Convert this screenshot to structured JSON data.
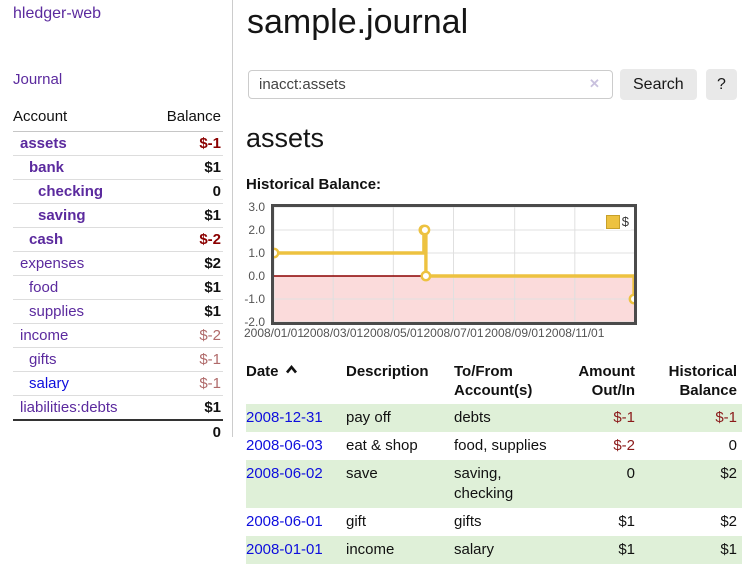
{
  "colors": {
    "link_purple": "#5b2a9e",
    "link_blue": "#0e0edd",
    "negative_strong": "#8b0000",
    "negative_muted": "#b06a6a",
    "register_negative": "#8b1a1a",
    "row_stripe_green": "#dff0d8",
    "series_gold": "#edc240",
    "chart_negative_fill": "#fbdbdb",
    "zero_line": "#8b0000"
  },
  "sidebar": {
    "app_title": "hledger-web",
    "journal_label": "Journal",
    "accounts": {
      "header_account": "Account",
      "header_balance": "Balance",
      "rows": [
        {
          "name": "assets",
          "indent": 0,
          "in_account": true,
          "balance": "$-1",
          "balance_tone": "negative",
          "link_tone": "purple"
        },
        {
          "name": "bank",
          "indent": 1,
          "in_account": true,
          "balance": "$1",
          "balance_tone": "positive",
          "link_tone": "purple"
        },
        {
          "name": "checking",
          "indent": 2,
          "in_account": true,
          "balance": "0",
          "balance_tone": "positive",
          "link_tone": "purple"
        },
        {
          "name": "saving",
          "indent": 2,
          "in_account": true,
          "balance": "$1",
          "balance_tone": "positive",
          "link_tone": "purple"
        },
        {
          "name": "cash",
          "indent": 1,
          "in_account": true,
          "balance": "$-2",
          "balance_tone": "negative",
          "link_tone": "purple"
        },
        {
          "name": "expenses",
          "indent": 0,
          "in_account": false,
          "balance": "$2",
          "balance_tone": "positive",
          "link_tone": "purple"
        },
        {
          "name": "food",
          "indent": 1,
          "in_account": false,
          "balance": "$1",
          "balance_tone": "positive",
          "link_tone": "purple"
        },
        {
          "name": "supplies",
          "indent": 1,
          "in_account": false,
          "balance": "$1",
          "balance_tone": "positive",
          "link_tone": "purple"
        },
        {
          "name": "income",
          "indent": 0,
          "in_account": false,
          "balance": "$-2",
          "balance_tone": "negative-muted",
          "link_tone": "purple"
        },
        {
          "name": "gifts",
          "indent": 1,
          "in_account": false,
          "balance": "$-1",
          "balance_tone": "negative-muted",
          "link_tone": "purple"
        },
        {
          "name": "salary",
          "indent": 1,
          "in_account": false,
          "balance": "$-1",
          "balance_tone": "negative-muted",
          "link_tone": "blue"
        },
        {
          "name": "liabilities:debts",
          "indent": 0,
          "in_account": false,
          "balance": "$1",
          "balance_tone": "positive",
          "link_tone": "purple"
        }
      ],
      "total": "0"
    }
  },
  "main": {
    "title": "sample.journal",
    "search": {
      "value": "inacct:assets",
      "clear_icon": "✕",
      "button_label": "Search",
      "help_label": "?"
    },
    "account_heading": "assets",
    "chart_label": "Historical Balance:"
  },
  "chart_data": {
    "type": "line",
    "step": true,
    "title": "Historical Balance",
    "xrange": [
      "2008-01-01",
      "2008-12-31"
    ],
    "ylim": [
      -2,
      3
    ],
    "yticks": [
      3.0,
      2.0,
      1.0,
      0.0,
      -1.0,
      -2.0
    ],
    "xticks": [
      {
        "date": "2008-01-01",
        "label": "2008/01/01"
      },
      {
        "date": "2008-03-01",
        "label": "2008/03/01"
      },
      {
        "date": "2008-05-01",
        "label": "2008/05/01"
      },
      {
        "date": "2008-07-01",
        "label": "2008/07/01"
      },
      {
        "date": "2008-09-01",
        "label": "2008/09/01"
      },
      {
        "date": "2008-11-01",
        "label": "2008/11/01"
      }
    ],
    "series": [
      {
        "name": "$",
        "color": "#edc240",
        "points": [
          {
            "date": "2008-01-01",
            "value": 1
          },
          {
            "date": "2008-06-01",
            "value": 2
          },
          {
            "date": "2008-06-02",
            "value": 2
          },
          {
            "date": "2008-06-03",
            "value": 0
          },
          {
            "date": "2008-12-31",
            "value": -1
          }
        ]
      }
    ],
    "legend_position": "top-right",
    "grid": true
  },
  "register": {
    "headers": {
      "date": "Date",
      "description": "Description",
      "accounts": "To/From Account(s)",
      "amount": "Amount Out/In",
      "balance": "Historical Balance"
    },
    "sort": {
      "column": "date",
      "direction": "ascending"
    },
    "rows": [
      {
        "date": "2008-12-31",
        "description": "pay off",
        "accounts": "debts",
        "amount": "$-1",
        "amount_negative": true,
        "balance": "$-1",
        "balance_negative": true
      },
      {
        "date": "2008-06-03",
        "description": "eat & shop",
        "accounts": "food, supplies",
        "amount": "$-2",
        "amount_negative": true,
        "balance": "0",
        "balance_negative": false
      },
      {
        "date": "2008-06-02",
        "description": "save",
        "accounts": "saving, checking",
        "amount": "0",
        "amount_negative": false,
        "balance": "$2",
        "balance_negative": false
      },
      {
        "date": "2008-06-01",
        "description": "gift",
        "accounts": "gifts",
        "amount": "$1",
        "amount_negative": false,
        "balance": "$2",
        "balance_negative": false
      },
      {
        "date": "2008-01-01",
        "description": "income",
        "accounts": "salary",
        "amount": "$1",
        "amount_negative": false,
        "balance": "$1",
        "balance_negative": false
      }
    ]
  }
}
